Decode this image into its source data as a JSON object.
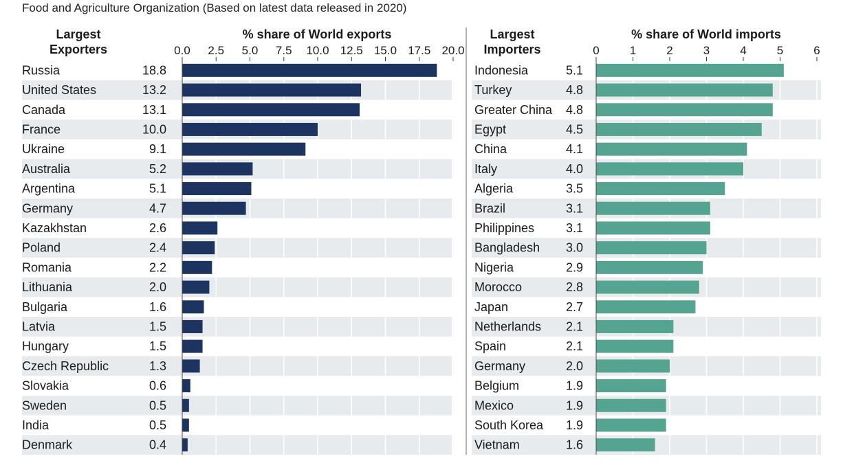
{
  "source_note": "Food and Agriculture Organization (Based on latest data released in 2020)",
  "colors": {
    "exports_bar": "#1d3461",
    "imports_bar": "#55a391",
    "band": "#e8ebee",
    "grid": "#ffffff",
    "divider": "#666666"
  },
  "chart_data": [
    {
      "type": "bar",
      "orientation": "horizontal",
      "header": {
        "line1": "Largest",
        "line2": "Exporters"
      },
      "title": "% share of World exports",
      "xlim": [
        0,
        20
      ],
      "ticks": [
        "0.0",
        "2.5",
        "5.0",
        "7.5",
        "10.0",
        "12.5",
        "15.0",
        "17.5",
        "20.0"
      ],
      "tick_values": [
        0,
        2.5,
        5,
        7.5,
        10,
        12.5,
        15,
        17.5,
        20
      ],
      "categories": [
        "Russia",
        "United States",
        "Canada",
        "France",
        "Ukraine",
        "Australia",
        "Argentina",
        "Germany",
        "Kazakhstan",
        "Poland",
        "Romania",
        "Lithuania",
        "Bulgaria",
        "Latvia",
        "Hungary",
        "Czech Republic",
        "Slovakia",
        "Sweden",
        "India",
        "Denmark"
      ],
      "values": [
        18.8,
        13.2,
        13.1,
        10.0,
        9.1,
        5.2,
        5.1,
        4.7,
        2.6,
        2.4,
        2.2,
        2.0,
        1.6,
        1.5,
        1.5,
        1.3,
        0.6,
        0.5,
        0.5,
        0.4
      ],
      "value_labels": [
        "18.8",
        "13.2",
        "13.1",
        "10.0",
        "9.1",
        "5.2",
        "5.1",
        "4.7",
        "2.6",
        "2.4",
        "2.2",
        "2.0",
        "1.6",
        "1.5",
        "1.5",
        "1.3",
        "0.6",
        "0.5",
        "0.5",
        "0.4"
      ],
      "grid": true
    },
    {
      "type": "bar",
      "orientation": "horizontal",
      "header": {
        "line1": "Largest",
        "line2": "Importers"
      },
      "title": "% share of World imports",
      "xlim": [
        0,
        6
      ],
      "ticks": [
        "0",
        "1",
        "2",
        "3",
        "4",
        "5",
        "6"
      ],
      "tick_values": [
        0,
        1,
        2,
        3,
        4,
        5,
        6
      ],
      "categories": [
        "Indonesia",
        "Turkey",
        "Greater China",
        "Egypt",
        "China",
        "Italy",
        "Algeria",
        "Brazil",
        "Philippines",
        "Bangladesh",
        "Nigeria",
        "Morocco",
        "Japan",
        "Netherlands",
        "Spain",
        "Germany",
        "Belgium",
        "Mexico",
        "South Korea",
        "Vietnam"
      ],
      "values": [
        5.1,
        4.8,
        4.8,
        4.5,
        4.1,
        4.0,
        3.5,
        3.1,
        3.1,
        3.0,
        2.9,
        2.8,
        2.7,
        2.1,
        2.1,
        2.0,
        1.9,
        1.9,
        1.9,
        1.6
      ],
      "value_labels": [
        "5.1",
        "4.8",
        "4.8",
        "4.5",
        "4.1",
        "4.0",
        "3.5",
        "3.1",
        "3.1",
        "3.0",
        "2.9",
        "2.8",
        "2.7",
        "2.1",
        "2.1",
        "2.0",
        "1.9",
        "1.9",
        "1.9",
        "1.6"
      ],
      "grid": true
    }
  ]
}
